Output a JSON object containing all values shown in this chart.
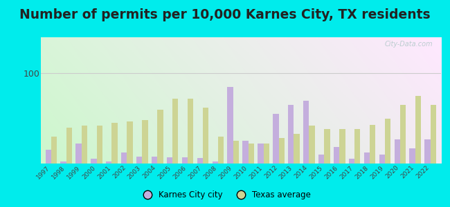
{
  "title": "Number of permits per 10,000 Karnes City, TX residents",
  "years": [
    1997,
    1998,
    1999,
    2000,
    2001,
    2002,
    2003,
    2004,
    2005,
    2006,
    2007,
    2008,
    2009,
    2010,
    2011,
    2012,
    2013,
    2014,
    2015,
    2016,
    2017,
    2018,
    2019,
    2020,
    2021,
    2022
  ],
  "city_values": [
    15,
    2,
    22,
    5,
    2,
    12,
    8,
    8,
    7,
    7,
    6,
    2,
    85,
    25,
    22,
    55,
    65,
    70,
    10,
    18,
    5,
    12,
    10,
    27,
    17,
    27
  ],
  "texas_values": [
    30,
    40,
    42,
    42,
    45,
    47,
    48,
    60,
    72,
    72,
    62,
    30,
    25,
    22,
    22,
    28,
    33,
    42,
    38,
    38,
    38,
    43,
    50,
    65,
    75,
    65
  ],
  "city_color": "#c4aedd",
  "texas_color": "#cdd494",
  "outer_bg": "#00ecec",
  "ylim": [
    0,
    140
  ],
  "ytick_val": 100,
  "legend_city": "Karnes City city",
  "legend_texas": "Texas average",
  "title_fontsize": 13.5,
  "title_color": "#222222",
  "watermark": "City-Data.com",
  "bar_width": 0.38
}
